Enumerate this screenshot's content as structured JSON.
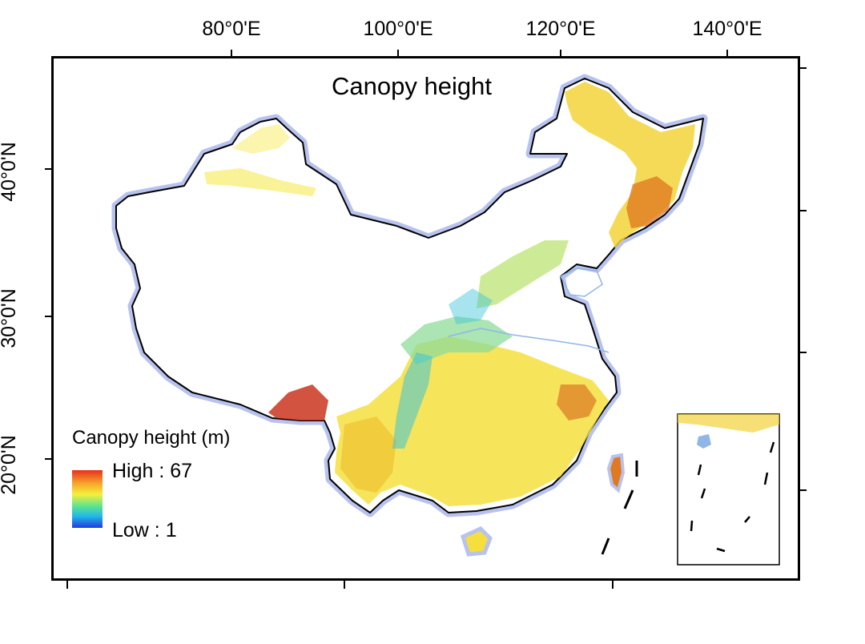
{
  "map": {
    "title": "Canopy height",
    "lon_labels": [
      "80°0'E",
      "100°0'E",
      "120°0'E",
      "140°0'E"
    ],
    "lat_labels": [
      "40°0'N",
      "30°0'N",
      "20°0'N"
    ],
    "legend": {
      "title": "Canopy height (m)",
      "high": "High : 67",
      "low": "Low : 1",
      "colors": [
        "#e8301c",
        "#f7a12a",
        "#f5ef3c",
        "#5fe58c",
        "#21b8e8",
        "#1f3be0"
      ]
    },
    "colors": {
      "land_fill": "#ffffff",
      "border_halo": "#b8c2ee",
      "border_line": "#000000",
      "forest_high": "#d9541e",
      "forest_mid": "#f2c431",
      "forest_low": "#f7ec6a",
      "forest_green": "#7edb8c",
      "forest_cyan": "#3cc3d8",
      "rivers": "#8fb6e6"
    }
  }
}
